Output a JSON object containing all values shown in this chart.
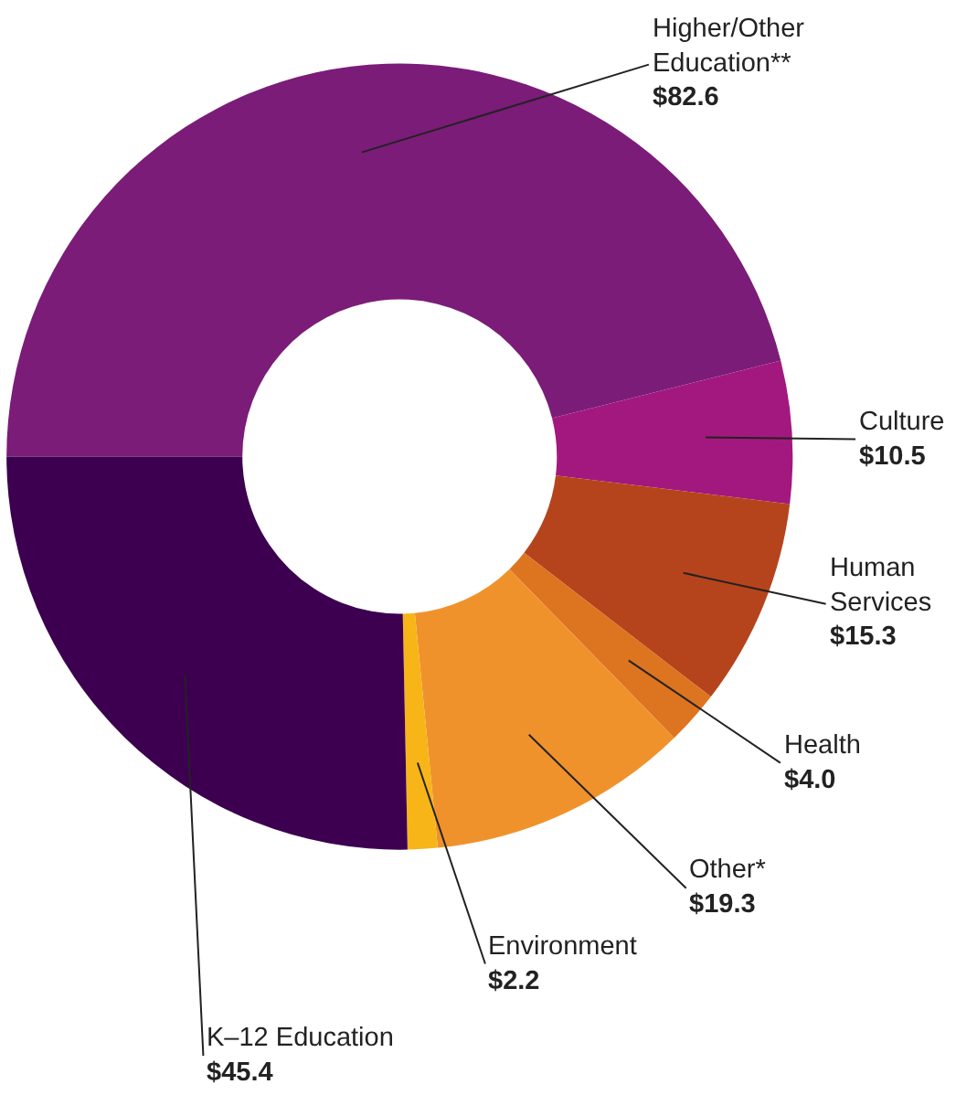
{
  "chart_data": {
    "type": "donut",
    "categories": [
      "Higher/Other Education**",
      "Culture",
      "Human Services",
      "Health",
      "Other*",
      "Environment",
      "K–12 Education"
    ],
    "values": [
      82.6,
      10.5,
      15.3,
      4.0,
      19.3,
      2.2,
      45.4
    ],
    "value_labels": [
      "$82.6",
      "$10.5",
      "$15.3",
      "$4.0",
      "$19.3",
      "$2.2",
      "$45.4"
    ],
    "colors": [
      "#7b1c78",
      "#a3187f",
      "#b5441c",
      "#dd7420",
      "#f0922c",
      "#f7b518",
      "#3d0050"
    ],
    "legend": false
  }
}
